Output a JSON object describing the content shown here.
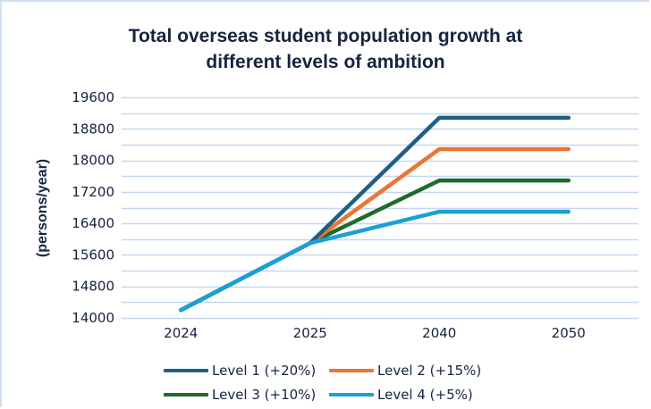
{
  "chart_data": {
    "type": "line",
    "title": "Total overseas student population growth at different levels of ambition",
    "title_lines": [
      "Total overseas student population growth at",
      "different levels of ambition"
    ],
    "xlabel": "",
    "ylabel": "(persons/year)",
    "categories": [
      "2024",
      "2025",
      "2040",
      "2050"
    ],
    "ylim": [
      14000,
      19600
    ],
    "yticks": [
      14000,
      14800,
      15600,
      16400,
      17200,
      18000,
      18800,
      19600
    ],
    "yticks_labels": [
      "14000",
      "14800",
      "15600",
      "16400",
      "17200",
      "18000",
      "18800",
      "19600"
    ],
    "minor_grid_step": 400,
    "grid": true,
    "legend_position": "bottom",
    "series": [
      {
        "name": "Level 1 (+20%)",
        "color": "#1f5f86",
        "values": [
          14200,
          15900,
          19080,
          19080
        ]
      },
      {
        "name": "Level 2 (+15%)",
        "color": "#ec7434",
        "values": [
          14200,
          15900,
          18285,
          18285
        ]
      },
      {
        "name": "Level 3 (+10%)",
        "color": "#1e6b2a",
        "values": [
          14200,
          15900,
          17490,
          17490
        ]
      },
      {
        "name": "Level 4 (+5%)",
        "color": "#1aa0d8",
        "values": [
          14200,
          15900,
          16695,
          16695
        ]
      }
    ]
  }
}
